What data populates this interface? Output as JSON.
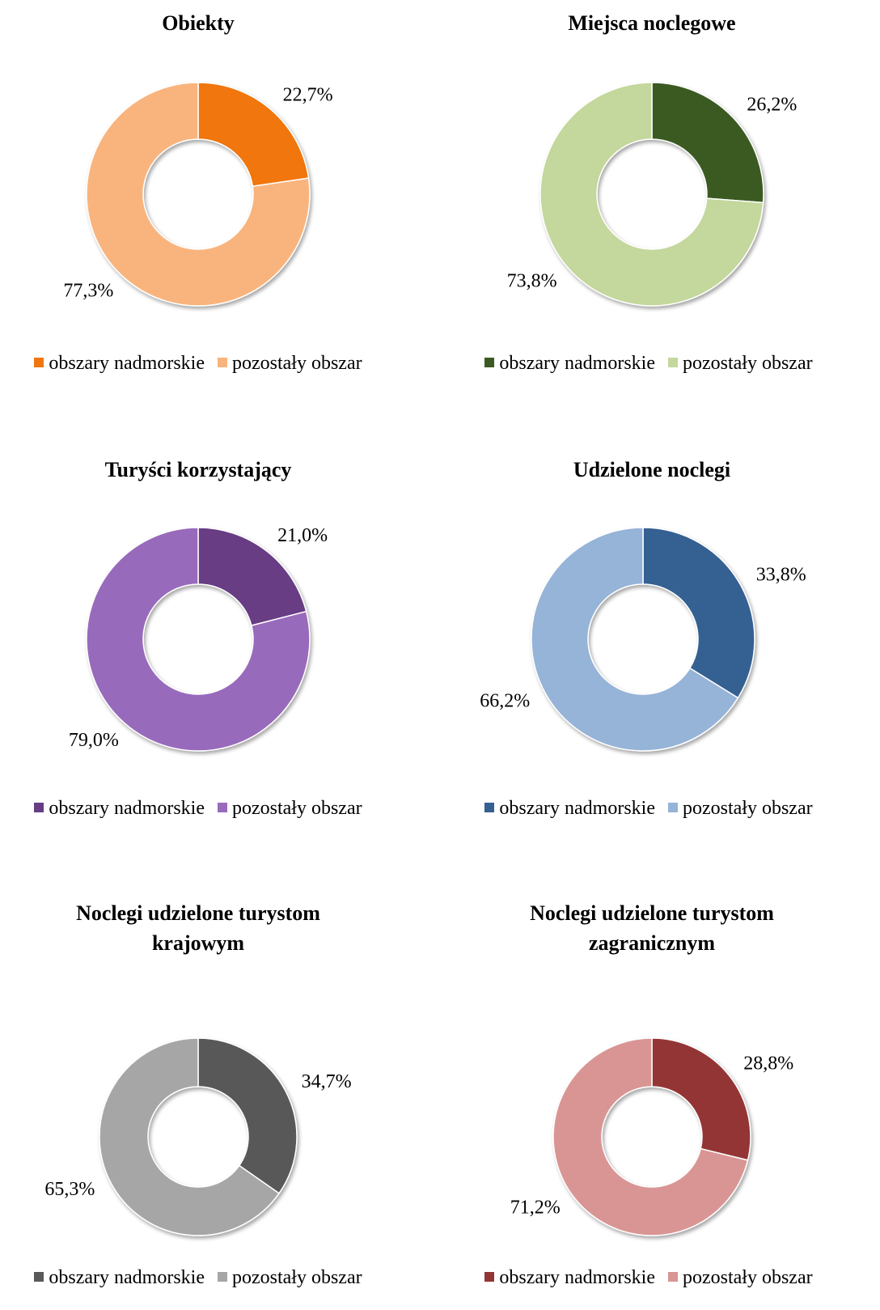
{
  "chart_data": [
    {
      "type": "donut",
      "title": "Obiekty",
      "categories": [
        "obszary nadmorskie",
        "pozostały obszar"
      ],
      "values": [
        22.7,
        77.3
      ],
      "value_labels": [
        "22,7%",
        "77,3%"
      ],
      "colors": [
        "#f0760f",
        "#f9b47d"
      ]
    },
    {
      "type": "donut",
      "title": "Miejsca noclegowe",
      "categories": [
        "obszary nadmorskie",
        "pozostały obszar"
      ],
      "values": [
        26.2,
        73.8
      ],
      "value_labels": [
        "26,2%",
        "73,8%"
      ],
      "colors": [
        "#3b5a22",
        "#c4d79c"
      ]
    },
    {
      "type": "donut",
      "title": "Turyści korzystający",
      "categories": [
        "obszary nadmorskie",
        "pozostały obszar"
      ],
      "values": [
        21.0,
        79.0
      ],
      "value_labels": [
        "21,0%",
        "79,0%"
      ],
      "colors": [
        "#673d84",
        "#986bbb"
      ]
    },
    {
      "type": "donut",
      "title": "Udzielone noclegi",
      "categories": [
        "obszary nadmorskie",
        "pozostały obszar"
      ],
      "values": [
        33.8,
        66.2
      ],
      "value_labels": [
        "33,8%",
        "66,2%"
      ],
      "colors": [
        "#356092",
        "#96b3d8"
      ]
    },
    {
      "type": "donut",
      "title": "Noclegi udzielone turystom krajowym",
      "categories": [
        "obszary nadmorskie",
        "pozostały obszar"
      ],
      "values": [
        34.7,
        65.3
      ],
      "value_labels": [
        "34,7%",
        "65,3%"
      ],
      "colors": [
        "#595959",
        "#a6a6a6"
      ]
    },
    {
      "type": "donut",
      "title": "Noclegi udzielone turystom zagranicznym",
      "categories": [
        "obszary nadmorskie",
        "pozostały obszar"
      ],
      "values": [
        28.8,
        71.2
      ],
      "value_labels": [
        "28,8%",
        "71,2%"
      ],
      "colors": [
        "#943535",
        "#d99594"
      ]
    }
  ]
}
